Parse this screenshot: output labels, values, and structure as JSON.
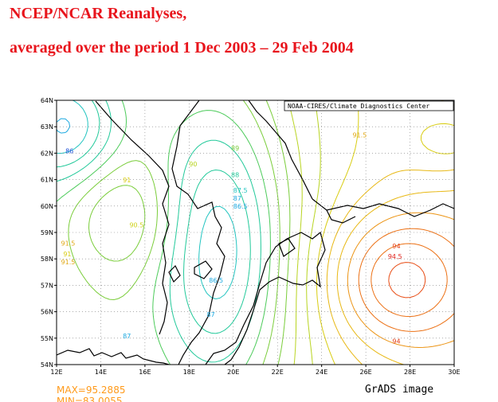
{
  "header": {
    "line1": "NCEP/NCAR Reanalyses,",
    "line2": "averaged over the period 1 Dec 2003 – 29 Feb 2004"
  },
  "chart_data": {
    "type": "contour",
    "credit": "NOAA-CIRES/Climate Diagnostics Center",
    "x_ticks": [
      "12E",
      "14E",
      "16E",
      "18E",
      "20E",
      "22E",
      "24E",
      "26E",
      "28E",
      "30E"
    ],
    "y_ticks": [
      "54N",
      "55N",
      "56N",
      "57N",
      "58N",
      "59N",
      "60N",
      "61N",
      "62N",
      "63N",
      "64N"
    ],
    "xlim": [
      12,
      30
    ],
    "ylim": [
      54,
      64
    ],
    "grid": true,
    "contour_labels": [
      {
        "text": "86",
        "lon": 12.4,
        "lat": 62.0,
        "color": "#1e4fd8"
      },
      {
        "text": "86.5",
        "lon": 18.9,
        "lat": 57.1,
        "color": "#1aa8e0"
      },
      {
        "text": "87",
        "lon": 15.0,
        "lat": 55.0,
        "color": "#1aa8e0"
      },
      {
        "text": "87",
        "lon": 18.8,
        "lat": 55.8,
        "color": "#1aa8e0"
      },
      {
        "text": "86.5",
        "lon": 20.0,
        "lat": 59.9,
        "color": "#1aa8e0"
      },
      {
        "text": "87",
        "lon": 20.0,
        "lat": 60.2,
        "color": "#1aa8e0"
      },
      {
        "text": "87.5",
        "lon": 20.0,
        "lat": 60.5,
        "color": "#22c4c0"
      },
      {
        "text": "88",
        "lon": 19.9,
        "lat": 61.1,
        "color": "#22c99a"
      },
      {
        "text": "89",
        "lon": 19.9,
        "lat": 62.1,
        "color": "#7acd3a"
      },
      {
        "text": "90",
        "lon": 18.0,
        "lat": 61.5,
        "color": "#b8d420"
      },
      {
        "text": "90.5",
        "lon": 15.3,
        "lat": 59.2,
        "color": "#cfd21a"
      },
      {
        "text": "91",
        "lon": 15.0,
        "lat": 60.9,
        "color": "#d8cc10"
      },
      {
        "text": "91.5",
        "lon": 12.2,
        "lat": 58.5,
        "color": "#e0a814"
      },
      {
        "text": "91",
        "lon": 12.3,
        "lat": 58.1,
        "color": "#d8cc10"
      },
      {
        "text": "91.5",
        "lon": 12.2,
        "lat": 57.8,
        "color": "#e0a814"
      },
      {
        "text": "91.5",
        "lon": 25.4,
        "lat": 62.6,
        "color": "#e0a814"
      },
      {
        "text": "94",
        "lon": 27.2,
        "lat": 58.4,
        "color": "#e23c14"
      },
      {
        "text": "94.5",
        "lon": 27.0,
        "lat": 58.0,
        "color": "#e0201a"
      },
      {
        "text": "94",
        "lon": 27.2,
        "lat": 54.8,
        "color": "#e23c14"
      }
    ],
    "max_label": "MAX=95.2885",
    "min_label": "MIN=83.0055",
    "footer": "GrADS image"
  }
}
